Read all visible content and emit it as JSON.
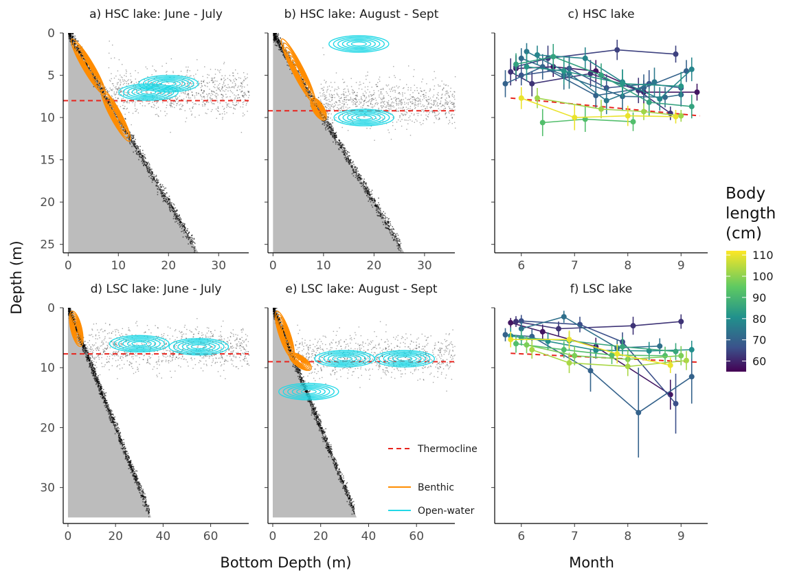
{
  "figure": {
    "xlabel_left": "Bottom Depth (m)",
    "xlabel_right": "Month",
    "ylabel": "Depth (m)"
  },
  "legend": {
    "thermocline": "Thermocline",
    "benthic": "Benthic",
    "open_water": "Open-water"
  },
  "colorbar": {
    "title": [
      "Body",
      "length",
      "(cm)"
    ],
    "ticks": [
      "110",
      "100",
      "90",
      "80",
      "70",
      "60"
    ],
    "range": [
      55,
      112
    ]
  },
  "colors": {
    "benthic": "#ff8c00",
    "open_water": "#22d8e6",
    "thermocline": "#e8231c",
    "bottom_fill": "#bcbcbc"
  },
  "chart_data": [
    {
      "type": "scatter",
      "title": "a) HSC lake: June - July",
      "xlim": [
        -1,
        36
      ],
      "ylim": [
        0,
        26
      ],
      "y_reversed": true,
      "xticks": [
        0,
        10,
        20,
        30
      ],
      "yticks": [
        0,
        5,
        10,
        15,
        20,
        25
      ],
      "xtick_labels": [
        "0",
        "10",
        "20",
        "30"
      ],
      "ytick_labels": [
        "0",
        "5",
        "10",
        "15",
        "20",
        "25"
      ],
      "thermocline_depth": 8.0,
      "bottom_max": 26,
      "benthic_kde_center": [
        [
          1,
          1
        ],
        [
          7,
          7
        ],
        [
          12,
          12.5
        ]
      ],
      "openwater_kde_center": [
        [
          16,
          7
        ],
        [
          20,
          6
        ]
      ]
    },
    {
      "type": "scatter",
      "title": "b) HSC lake: August - Sept",
      "xlim": [
        -1,
        36
      ],
      "ylim": [
        0,
        26
      ],
      "y_reversed": true,
      "xticks": [
        0,
        10,
        20,
        30
      ],
      "yticks": [
        0,
        5,
        10,
        15,
        20,
        25
      ],
      "xtick_labels": [
        "0",
        "10",
        "20",
        "30"
      ],
      "ytick_labels": [
        "0",
        "5",
        "10",
        "15",
        "20",
        "25"
      ],
      "thermocline_depth": 9.2,
      "bottom_max": 26,
      "benthic_kde_center": [
        [
          2,
          1
        ],
        [
          8,
          8
        ],
        [
          10,
          10
        ]
      ],
      "openwater_kde_center": [
        [
          17,
          1.3
        ],
        [
          18,
          10
        ]
      ]
    },
    {
      "type": "line",
      "title": "c) HSC lake",
      "xlim": [
        5.5,
        9.5
      ],
      "ylim": [
        0,
        26
      ],
      "y_reversed": true,
      "xticks": [
        6,
        7,
        8,
        9
      ],
      "xtick_labels": [
        "6",
        "7",
        "8",
        "9"
      ],
      "thermocline_start": 7.7,
      "thermocline_end": 9.8,
      "series": [
        {
          "length": 58,
          "points": [
            [
              5.9,
              4.2,
              1.5
            ],
            [
              6.6,
              4.0,
              1.2
            ],
            [
              7.4,
              4.5,
              1.3
            ],
            [
              8.3,
              7.0,
              1.4
            ],
            [
              9.3,
              7.0,
              1.0
            ]
          ]
        },
        {
          "length": 62,
          "points": [
            [
              5.8,
              4.6,
              1.6
            ],
            [
              6.2,
              6.0,
              1.5
            ],
            [
              7.3,
              4.8,
              1.6
            ],
            [
              8.2,
              6.8,
              1.5
            ],
            [
              8.8,
              9.5,
              0.8
            ]
          ]
        },
        {
          "length": 64,
          "points": [
            [
              5.9,
              4.0,
              1.4
            ],
            [
              6.5,
              3.0,
              1.5
            ],
            [
              7.8,
              2.0,
              1.2
            ],
            [
              8.9,
              2.5,
              1.0
            ]
          ]
        },
        {
          "length": 67,
          "points": [
            [
              6.0,
              5.0,
              1.2
            ],
            [
              6.9,
              4.2,
              1.5
            ],
            [
              7.6,
              6.5,
              1.6
            ],
            [
              8.4,
              6.0,
              1.6
            ],
            [
              9.0,
              6.5,
              1.4
            ]
          ]
        },
        {
          "length": 70,
          "points": [
            [
              5.7,
              6.0,
              1.6
            ],
            [
              6.4,
              4.0,
              1.5
            ],
            [
              7.4,
              7.4,
              1.5
            ],
            [
              8.3,
              6.5,
              1.6
            ],
            [
              9.1,
              4.5,
              1.3
            ]
          ]
        },
        {
          "length": 72,
          "points": [
            [
              6.0,
              3.0,
              1.2
            ],
            [
              6.8,
              5.0,
              1.7
            ],
            [
              7.9,
              7.5,
              1.6
            ],
            [
              8.7,
              7.6,
              1.2
            ],
            [
              9.0,
              7.3,
              1.4
            ]
          ]
        },
        {
          "length": 75,
          "points": [
            [
              6.1,
              2.2,
              1.0
            ],
            [
              6.9,
              4.8,
              1.8
            ],
            [
              7.6,
              8.0,
              1.6
            ],
            [
              8.5,
              5.8,
              1.7
            ]
          ]
        },
        {
          "length": 78,
          "points": [
            [
              6.3,
              2.6,
              1.1
            ],
            [
              7.2,
              3.0,
              1.3
            ],
            [
              7.9,
              5.8,
              1.5
            ],
            [
              8.6,
              7.8,
              1.4
            ],
            [
              9.2,
              4.3,
              1.4
            ]
          ]
        },
        {
          "length": 82,
          "points": [
            [
              6.1,
              4.0,
              1.7
            ],
            [
              6.8,
              4.5,
              1.6
            ],
            [
              7.9,
              6.0,
              1.6
            ],
            [
              9.0,
              6.3,
              1.7
            ]
          ]
        },
        {
          "length": 85,
          "points": [
            [
              5.9,
              3.7,
              1.3
            ],
            [
              6.6,
              2.8,
              1.5
            ],
            [
              7.5,
              5.0,
              1.4
            ],
            [
              8.4,
              8.2,
              1.6
            ],
            [
              9.2,
              8.7,
              1.4
            ]
          ]
        },
        {
          "length": 92,
          "points": [
            [
              6.4,
              10.6,
              1.6
            ],
            [
              7.2,
              10.2,
              1.5
            ],
            [
              8.1,
              10.5,
              1.1
            ]
          ]
        },
        {
          "length": 102,
          "points": [
            [
              6.3,
              7.7,
              1.2
            ],
            [
              7.5,
              9.0,
              1.1
            ],
            [
              8.3,
              9.3,
              1.0
            ],
            [
              9.0,
              9.8,
              0.7
            ]
          ]
        },
        {
          "length": 110,
          "points": [
            [
              6.0,
              7.7,
              1.3
            ],
            [
              7.0,
              10.0,
              1.5
            ],
            [
              8.0,
              9.8,
              1.2
            ],
            [
              8.9,
              9.9,
              0.8
            ]
          ]
        }
      ]
    },
    {
      "type": "scatter",
      "title": "d) LSC lake: June - July",
      "xlim": [
        -2,
        76
      ],
      "ylim": [
        0,
        36
      ],
      "y_reversed": true,
      "xticks": [
        0,
        20,
        40,
        60
      ],
      "yticks": [
        0,
        10,
        20,
        30
      ],
      "xtick_labels": [
        "0",
        "20",
        "40",
        "60"
      ],
      "ytick_labels": [
        "0",
        "10",
        "20",
        "30"
      ],
      "thermocline_depth": 7.7,
      "bottom_max": 35,
      "benthic_kde_center": [
        [
          2,
          1
        ],
        [
          5,
          6
        ]
      ],
      "openwater_kde_center": [
        [
          30,
          6
        ],
        [
          55,
          6.5
        ]
      ]
    },
    {
      "type": "scatter",
      "title": "e) LSC lake: August - Sept",
      "xlim": [
        -2,
        76
      ],
      "ylim": [
        0,
        36
      ],
      "y_reversed": true,
      "xticks": [
        0,
        20,
        40,
        60
      ],
      "yticks": [
        0,
        10,
        20,
        30
      ],
      "xtick_labels": [
        "0",
        "20",
        "40",
        "60"
      ],
      "ytick_labels": [
        "0",
        "10",
        "20",
        "30"
      ],
      "thermocline_depth": 9.0,
      "bottom_max": 35,
      "benthic_kde_center": [
        [
          2,
          1
        ],
        [
          8,
          8
        ],
        [
          15,
          10
        ]
      ],
      "openwater_kde_center": [
        [
          30,
          8.5
        ],
        [
          55,
          8.5
        ],
        [
          15,
          14
        ]
      ]
    },
    {
      "type": "line",
      "title": "f) LSC lake",
      "xlim": [
        5.5,
        9.5
      ],
      "ylim": [
        0,
        36
      ],
      "y_reversed": true,
      "xticks": [
        6,
        7,
        8,
        9
      ],
      "xtick_labels": [
        "6",
        "7",
        "8",
        "9"
      ],
      "thermocline_start": 7.6,
      "thermocline_end": 9.1,
      "series": [
        {
          "length": 58,
          "points": [
            [
              5.8,
              2.5,
              0.8
            ],
            [
              6.4,
              4.0,
              1.2
            ],
            [
              7.4,
              6.5,
              1.5
            ],
            [
              8.8,
              14.5,
              2.5
            ]
          ]
        },
        {
          "length": 62,
          "points": [
            [
              5.9,
              2.3,
              0.9
            ],
            [
              6.7,
              3.5,
              1.2
            ],
            [
              8.1,
              3.0,
              1.5
            ],
            [
              9.0,
              2.3,
              1.2
            ]
          ]
        },
        {
          "length": 66,
          "points": [
            [
              6.0,
              2.2,
              1.0
            ],
            [
              7.1,
              2.8,
              1.3
            ],
            [
              7.9,
              5.7,
              1.6
            ],
            [
              8.9,
              16.0,
              5.0
            ]
          ]
        },
        {
          "length": 70,
          "points": [
            [
              5.7,
              4.5,
              1.1
            ],
            [
              6.2,
              4.8,
              1.3
            ],
            [
              7.3,
              10.5,
              3.5
            ],
            [
              8.2,
              17.5,
              7.5
            ],
            [
              9.2,
              11.5,
              4.5
            ]
          ]
        },
        {
          "length": 73,
          "points": [
            [
              6.0,
              3.5,
              1.2
            ],
            [
              6.8,
              1.5,
              1.0
            ],
            [
              7.8,
              6.7,
              1.4
            ],
            [
              8.6,
              6.4,
              1.3
            ]
          ]
        },
        {
          "length": 80,
          "points": [
            [
              5.8,
              4.7,
              1.4
            ],
            [
              6.5,
              5.6,
              1.5
            ],
            [
              7.4,
              7.1,
              1.4
            ],
            [
              8.4,
              7.2,
              1.5
            ],
            [
              9.2,
              7.0,
              1.5
            ]
          ]
        },
        {
          "length": 86,
          "points": [
            [
              6.0,
              5.0,
              1.3
            ],
            [
              6.9,
              5.5,
              1.5
            ],
            [
              7.9,
              6.5,
              1.6
            ],
            [
              8.9,
              7.3,
              1.4
            ]
          ]
        },
        {
          "length": 92,
          "points": [
            [
              5.9,
              6.0,
              1.5
            ],
            [
              6.8,
              7.0,
              1.4
            ],
            [
              7.7,
              7.9,
              1.5
            ],
            [
              8.7,
              8.0,
              1.5
            ]
          ]
        },
        {
          "length": 98,
          "points": [
            [
              6.1,
              6.2,
              1.4
            ],
            [
              7.0,
              8.0,
              1.6
            ],
            [
              8.0,
              8.6,
              1.6
            ],
            [
              9.0,
              8.0,
              1.6
            ]
          ]
        },
        {
          "length": 103,
          "points": [
            [
              6.2,
              7.0,
              1.5
            ],
            [
              6.9,
              9.2,
              1.7
            ],
            [
              8.0,
              9.8,
              1.6
            ],
            [
              9.1,
              8.8,
              1.6
            ]
          ]
        },
        {
          "length": 110,
          "points": [
            [
              5.8,
              5.3,
              1.3
            ],
            [
              6.9,
              5.3,
              1.5
            ],
            [
              7.8,
              7.7,
              1.6
            ],
            [
              8.8,
              9.6,
              1.3
            ]
          ]
        }
      ]
    }
  ]
}
